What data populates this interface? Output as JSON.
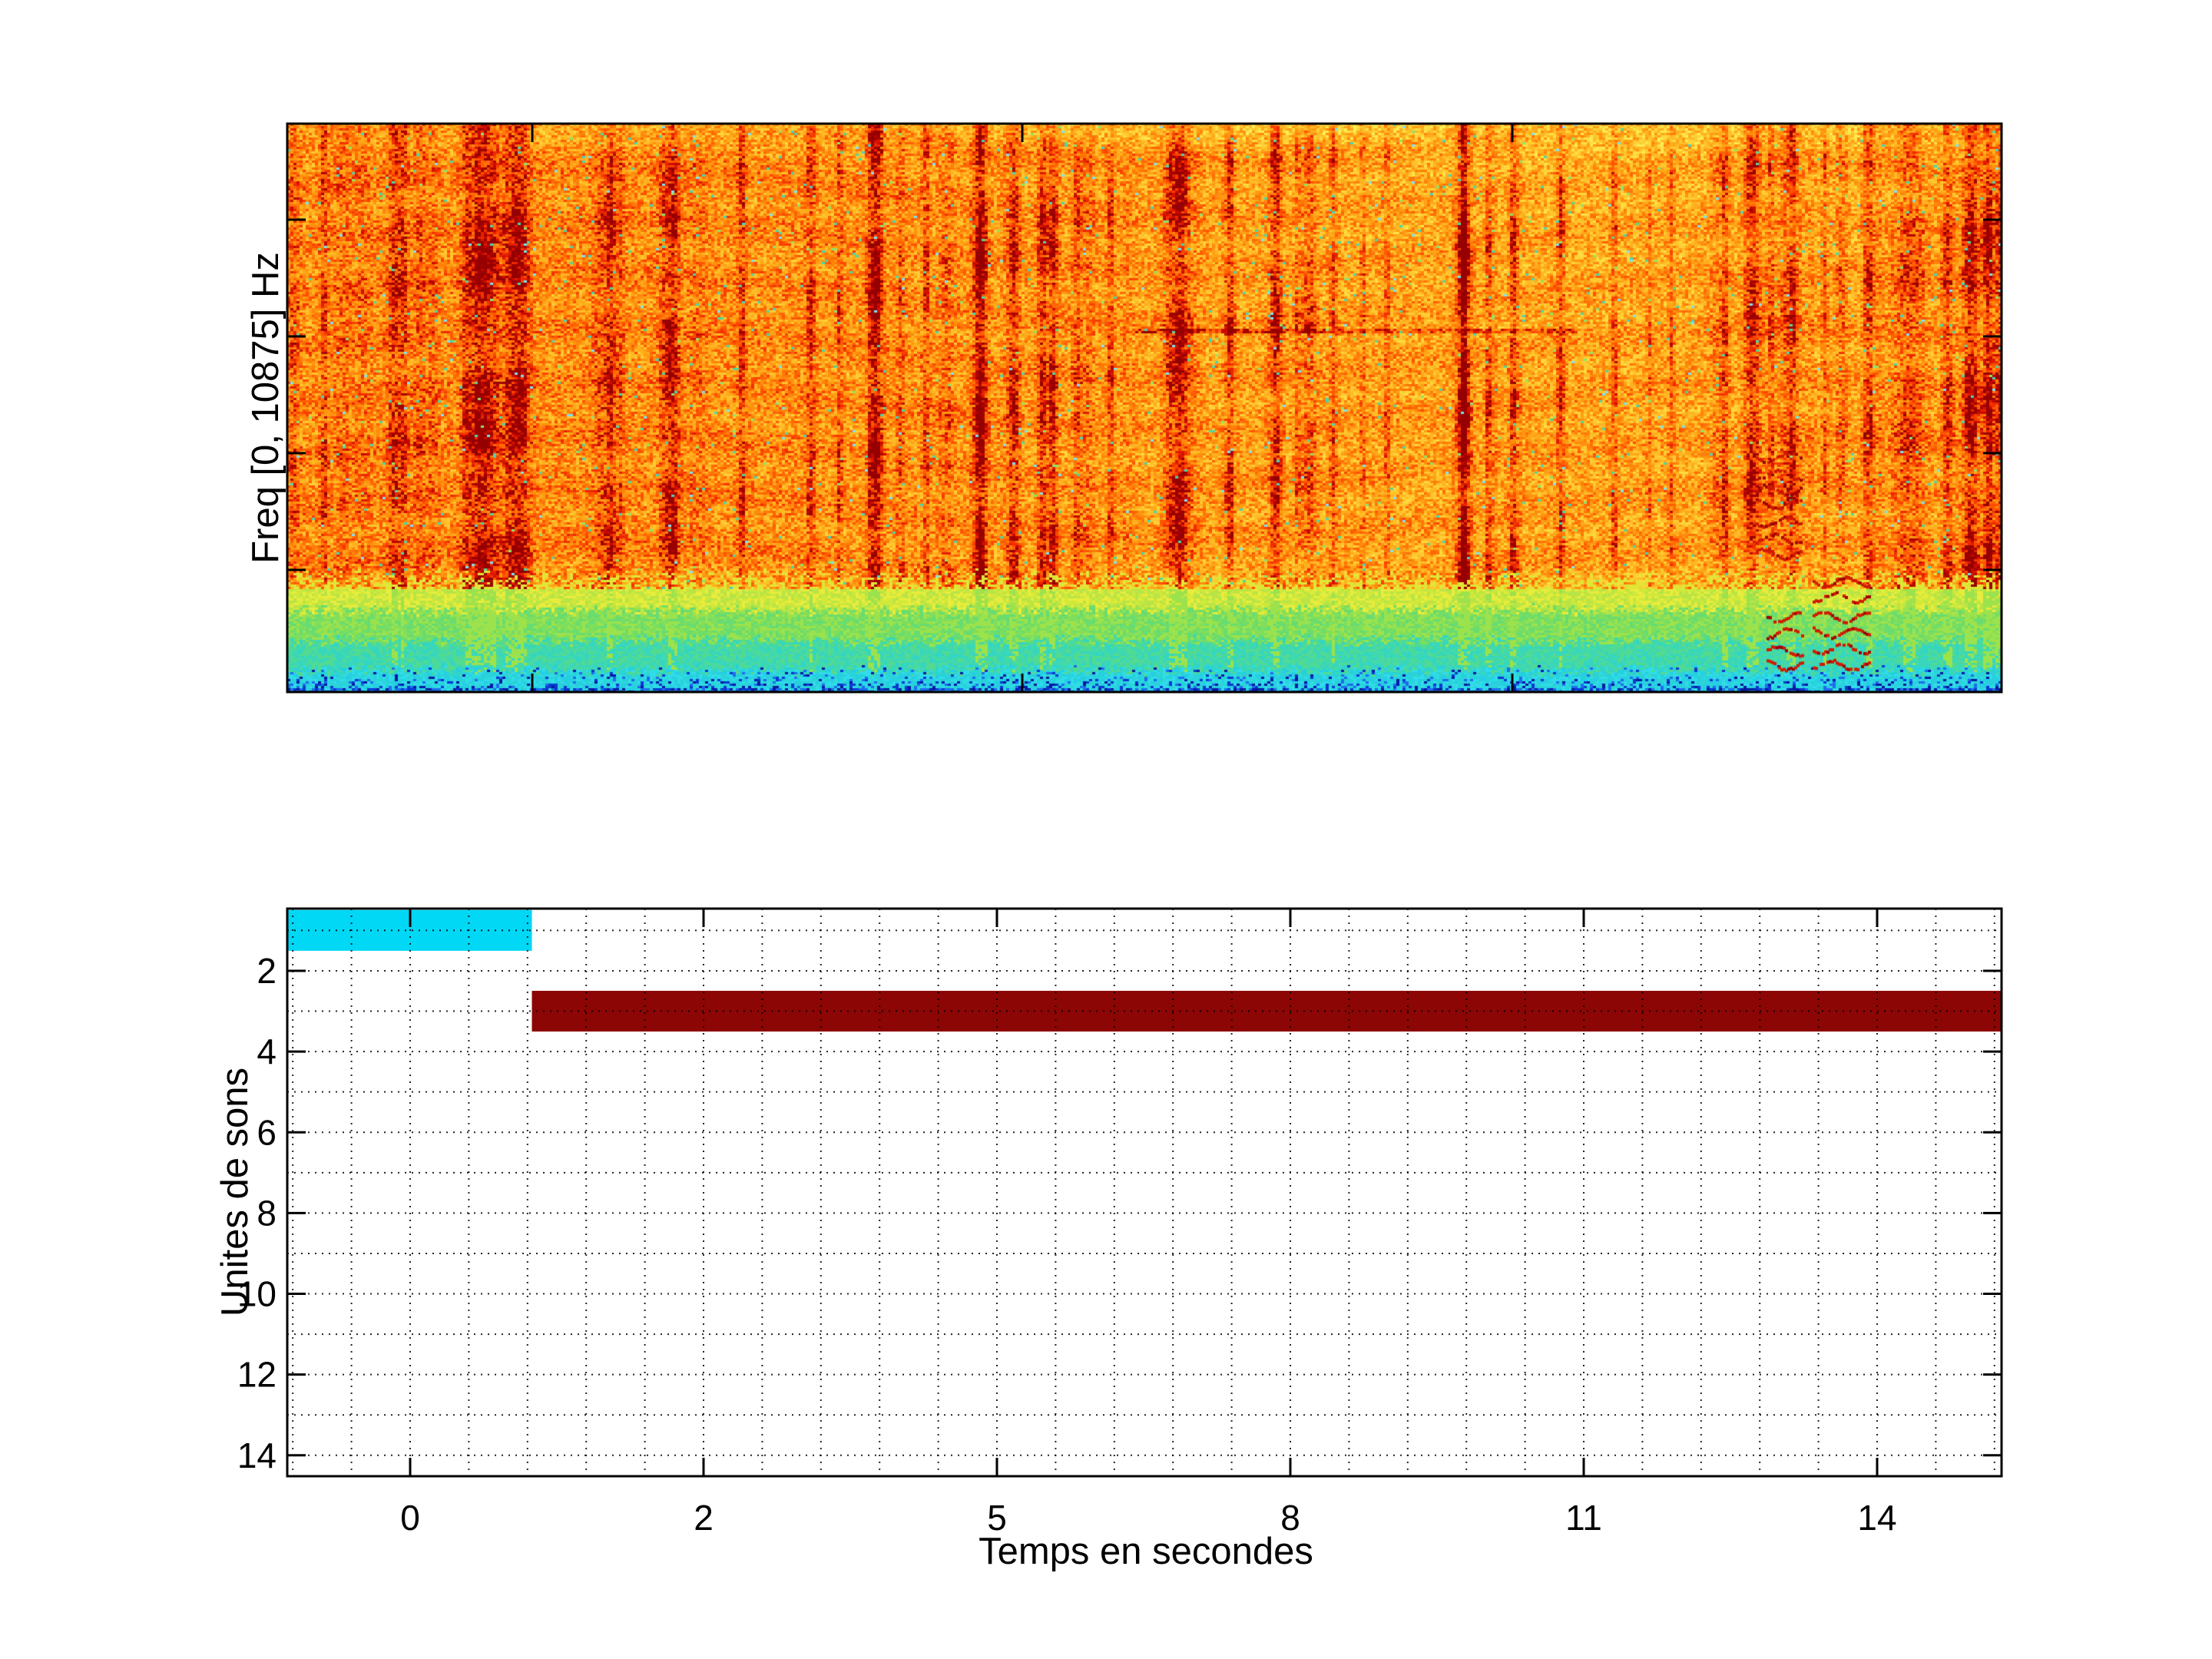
{
  "figure": {
    "background": "#ffffff",
    "spectrogram": {
      "ylabel": "Freq [0, 10875] Hz",
      "freq_min_hz": 0,
      "freq_max_hz": 10875,
      "colormap": "jet"
    },
    "timeline": {
      "xlabel": "Temps en secondes",
      "ylabel": "Unites de sons"
    }
  },
  "chart_data": [
    {
      "type": "heatmap",
      "role": "spectrogram",
      "title": "",
      "xlabel": "",
      "ylabel": "Freq [0, 10875] Hz",
      "x_tick_labels": [],
      "y_tick_labels": [],
      "colormap": "jet",
      "grid": false,
      "visual_features": {
        "body": "dense orange/red noise over most of the frequency band (high energy)",
        "streaks": "many dark-red vertical striations, strongest clusters near left quarter, mid (t≈5-7s), t≈9-10s and near the right edge",
        "horizontal_line": "faint red horizontal band around mid-height on the right-middle section",
        "low_band": "yellow→green→cyan transition band in the lowest ~15% of the band with sparse dark-blue dashes at the very bottom",
        "right_edge": "strong dark-red wide bands and wavy harmonic red arcs near the end of the signal"
      },
      "prominent_streaks_frac_x": [
        0.11,
        0.13,
        0.22,
        0.34,
        0.4,
        0.45,
        0.52,
        0.55,
        0.58,
        0.69,
        0.7,
        0.74,
        0.86,
        0.94,
        0.98,
        0.995
      ]
    },
    {
      "type": "bar",
      "role": "sound-unit-timeline",
      "orientation": "horizontal",
      "title": "",
      "xlabel": "Temps en secondes",
      "ylabel": "Unites de sons",
      "x_tick_labels": [
        "0",
        "2",
        "5",
        "8",
        "11",
        "14"
      ],
      "y_tick_labels": [
        "2",
        "4",
        "6",
        "8",
        "10",
        "12",
        "14"
      ],
      "ylim": [
        0.5,
        14.5
      ],
      "y_inverted": true,
      "grid": "dotted black, horizontal every 1 unit, vertical every 1/5 of tick interval",
      "bars": [
        {
          "sound_unit": 1,
          "start_s": -0.84,
          "end_s": 0.83,
          "color": "#00D8F5"
        },
        {
          "sound_unit": 3,
          "start_s": 0.83,
          "end_s": 15.27,
          "color": "#8C0606"
        }
      ]
    }
  ]
}
